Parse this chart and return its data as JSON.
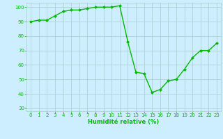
{
  "x": [
    0,
    1,
    2,
    3,
    4,
    5,
    6,
    7,
    8,
    9,
    10,
    11,
    12,
    13,
    14,
    15,
    16,
    17,
    18,
    19,
    20,
    21,
    22,
    23
  ],
  "y": [
    90,
    91,
    91,
    94,
    97,
    98,
    98,
    99,
    100,
    100,
    100,
    101,
    76,
    55,
    54,
    41,
    43,
    49,
    50,
    57,
    65,
    70,
    70,
    75
  ],
  "line_color": "#00bb00",
  "marker_color": "#00bb00",
  "bg_color": "#cceeff",
  "grid_color": "#aacccc",
  "xlabel": "Humidité relative (%)",
  "ylim": [
    28,
    103
  ],
  "xlim": [
    -0.5,
    23.5
  ],
  "yticks": [
    30,
    40,
    50,
    60,
    70,
    80,
    90,
    100
  ],
  "xticks": [
    0,
    1,
    2,
    3,
    4,
    5,
    6,
    7,
    8,
    9,
    10,
    11,
    12,
    13,
    14,
    15,
    16,
    17,
    18,
    19,
    20,
    21,
    22,
    23
  ],
  "tick_fontsize": 5.0,
  "xlabel_fontsize": 6.0
}
